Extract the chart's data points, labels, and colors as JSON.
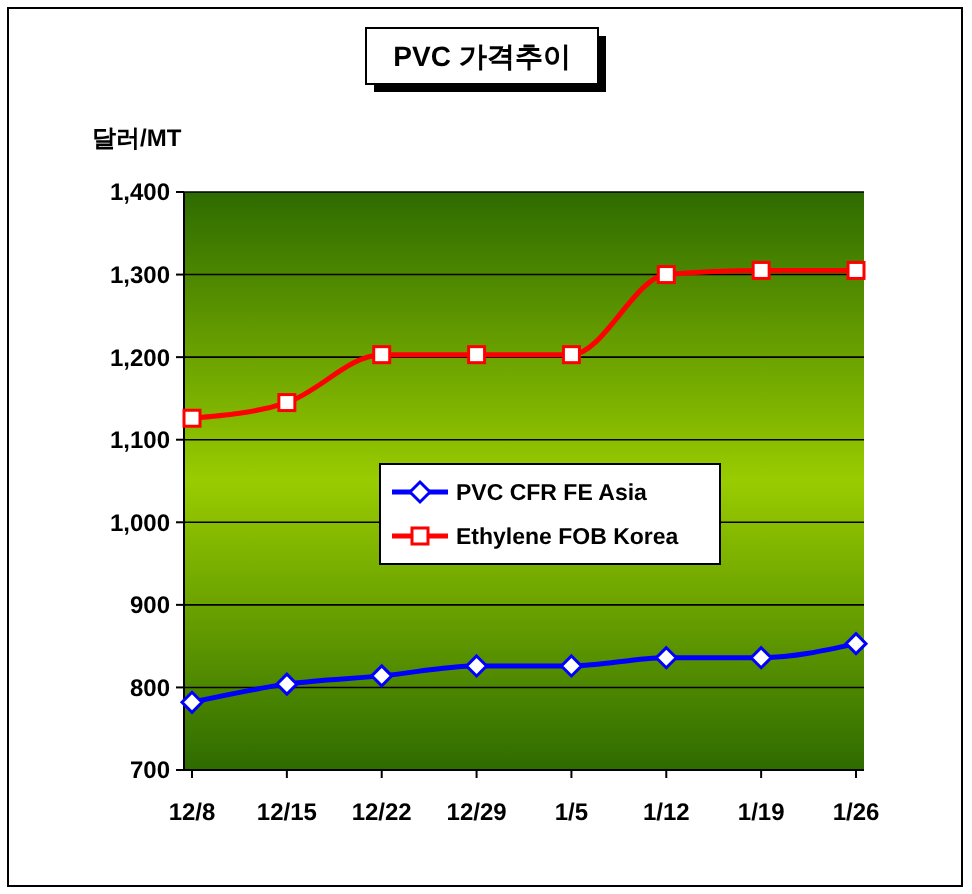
{
  "chart_data": {
    "type": "line",
    "title": "PVC 가격추이",
    "ylabel": "달러/MT",
    "categories": [
      "12/8",
      "12/15",
      "12/22",
      "12/29",
      "1/5",
      "1/12",
      "1/19",
      "1/26"
    ],
    "series": [
      {
        "name": "PVC CFR FE Asia",
        "color": "#0000ff",
        "marker": "diamond",
        "values": [
          782,
          804,
          814,
          826,
          826,
          836,
          836,
          853
        ]
      },
      {
        "name": "Ethylene FOB Korea",
        "color": "#ff0000",
        "marker": "square",
        "values": [
          1126,
          1145,
          1203,
          1203,
          1203,
          1300,
          1305,
          1305
        ]
      }
    ],
    "ylim": [
      700,
      1400
    ],
    "yticks": [
      {
        "value": 700,
        "label": "700"
      },
      {
        "value": 800,
        "label": "800"
      },
      {
        "value": 900,
        "label": "900"
      },
      {
        "value": 1000,
        "label": "1,000"
      },
      {
        "value": 1100,
        "label": "1,100"
      },
      {
        "value": 1200,
        "label": "1,200"
      },
      {
        "value": 1300,
        "label": "1,300"
      },
      {
        "value": 1400,
        "label": "1,400"
      }
    ],
    "grid": "y",
    "legend": "center",
    "line_style": "solid"
  }
}
